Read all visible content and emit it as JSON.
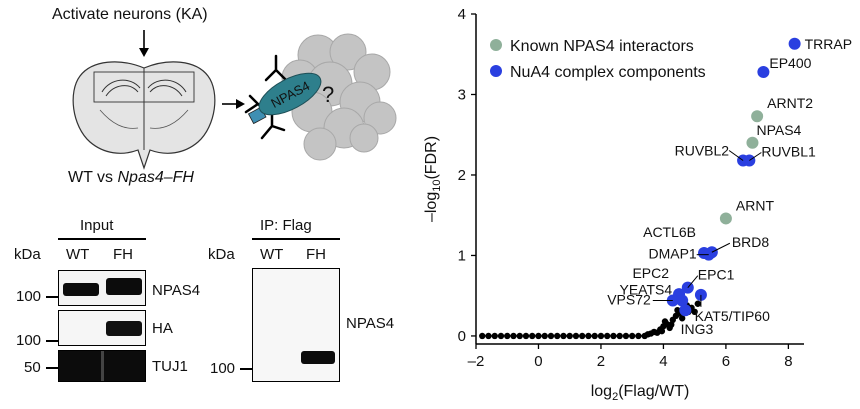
{
  "schematic": {
    "activate_label": "Activate neurons (KA)",
    "protein_label": "NPAS4",
    "unknown_mark": "?",
    "comparison_prefix": "WT vs ",
    "comparison_gene": "Npas4–FH"
  },
  "input_blot": {
    "title": "Input",
    "kda_label": "kDa",
    "lanes": [
      "WT",
      "FH"
    ],
    "panels": [
      {
        "marker": "100",
        "label": "NPAS4"
      },
      {
        "marker": "100",
        "label": "HA"
      },
      {
        "marker": "50",
        "label": "TUJ1"
      }
    ]
  },
  "ip_blot": {
    "title": "IP: Flag",
    "kda_label": "kDa",
    "lanes": [
      "WT",
      "FH"
    ],
    "marker": "100",
    "label": "NPAS4"
  },
  "colors": {
    "known": "#8fb09a",
    "nua4": "#2a3fe0",
    "other": "#000000",
    "npas4_protein": "#2e7f8c"
  },
  "chart_data": {
    "type": "scatter",
    "xlabel": "log2(Flag/WT)",
    "ylabel": "–log10(FDR)",
    "xlim": [
      -2,
      8.5
    ],
    "ylim": [
      -0.1,
      4
    ],
    "xticks": [
      "–2",
      "0",
      "2",
      "4",
      "6",
      "8"
    ],
    "yticks": [
      "0",
      "1",
      "2",
      "3",
      "4"
    ],
    "legend": [
      {
        "key": "known",
        "label": "Known NPAS4 interactors"
      },
      {
        "key": "nua4",
        "label": "NuA4 complex components"
      }
    ],
    "labeled_points": [
      {
        "name": "TRRAP",
        "x": 8.2,
        "y": 3.63,
        "group": "nua4"
      },
      {
        "name": "EP400",
        "x": 7.2,
        "y": 3.28,
        "group": "nua4"
      },
      {
        "name": "ARNT2",
        "x": 7.0,
        "y": 2.73,
        "group": "known"
      },
      {
        "name": "NPAS4",
        "x": 6.85,
        "y": 2.4,
        "group": "known"
      },
      {
        "name": "RUVBL2",
        "x": 6.55,
        "y": 2.18,
        "group": "nua4"
      },
      {
        "name": "RUVBL1",
        "x": 6.75,
        "y": 2.18,
        "group": "nua4"
      },
      {
        "name": "ARNT",
        "x": 6.0,
        "y": 1.46,
        "group": "known"
      },
      {
        "name": "ACTL6B",
        "x": 5.3,
        "y": 1.03,
        "group": "nua4"
      },
      {
        "name": "BRD8",
        "x": 5.55,
        "y": 1.04,
        "group": "nua4"
      },
      {
        "name": "DMAP1",
        "x": 5.45,
        "y": 1.01,
        "group": "nua4"
      },
      {
        "name": "EPC2",
        "x": 4.5,
        "y": 0.52,
        "group": "nua4"
      },
      {
        "name": "EPC1",
        "x": 4.78,
        "y": 0.6,
        "group": "nua4"
      },
      {
        "name": "YEATS4",
        "x": 4.6,
        "y": 0.44,
        "group": "nua4"
      },
      {
        "name": "VPS72",
        "x": 4.3,
        "y": 0.44,
        "group": "nua4"
      },
      {
        "name": "KAT5/TIP60",
        "x": 5.2,
        "y": 0.51,
        "group": "nua4"
      },
      {
        "name": "ING3",
        "x": 4.7,
        "y": 0.32,
        "group": "nua4"
      }
    ],
    "other_points": [
      [
        -1.8,
        0
      ],
      [
        -1.6,
        0
      ],
      [
        -1.4,
        0
      ],
      [
        -1.2,
        0
      ],
      [
        -1.0,
        0
      ],
      [
        -0.8,
        0
      ],
      [
        -0.6,
        0
      ],
      [
        -0.4,
        0
      ],
      [
        -0.2,
        0
      ],
      [
        0,
        0
      ],
      [
        0.2,
        0
      ],
      [
        0.4,
        0
      ],
      [
        0.6,
        0
      ],
      [
        0.8,
        0
      ],
      [
        1.0,
        0
      ],
      [
        1.2,
        0
      ],
      [
        1.4,
        0
      ],
      [
        1.6,
        0
      ],
      [
        1.8,
        0
      ],
      [
        2.0,
        0
      ],
      [
        2.2,
        0
      ],
      [
        2.4,
        0
      ],
      [
        2.6,
        0
      ],
      [
        2.8,
        0
      ],
      [
        3.0,
        0
      ],
      [
        3.2,
        0
      ],
      [
        3.4,
        0
      ],
      [
        3.5,
        0.02
      ],
      [
        3.6,
        0.03
      ],
      [
        3.7,
        0.05
      ],
      [
        3.8,
        0.04
      ],
      [
        3.9,
        0.08
      ],
      [
        4.0,
        0.12
      ],
      [
        4.1,
        0.15
      ],
      [
        4.2,
        0.1
      ],
      [
        4.3,
        0.2
      ],
      [
        4.4,
        0.25
      ],
      [
        4.5,
        0.28
      ],
      [
        4.6,
        0.22
      ],
      [
        4.8,
        0.3
      ],
      [
        4.9,
        0.35
      ],
      [
        5.0,
        0.3
      ],
      [
        5.1,
        0.4
      ],
      [
        4.05,
        0.18
      ],
      [
        4.25,
        0.14
      ],
      [
        4.45,
        0.32
      ],
      [
        4.75,
        0.38
      ],
      [
        3.95,
        0.06
      ]
    ]
  }
}
